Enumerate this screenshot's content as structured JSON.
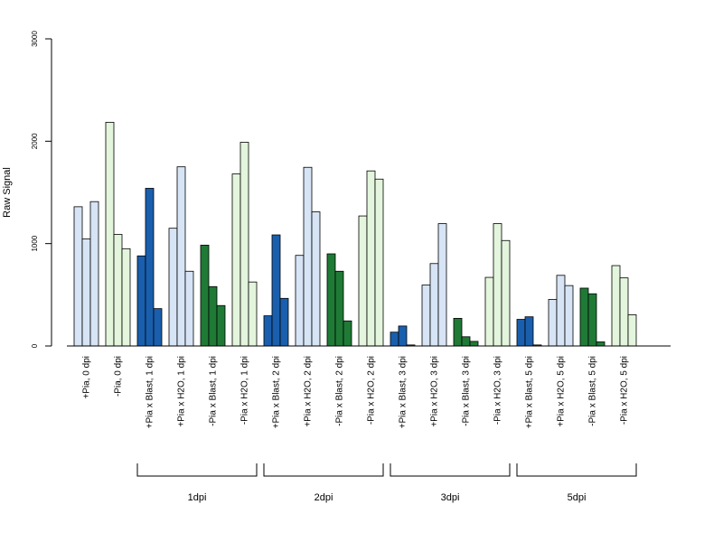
{
  "chart_data": {
    "type": "bar",
    "ylabel": "Raw Signal",
    "ylim": [
      0,
      3000
    ],
    "yticks": [
      0,
      1000,
      2000,
      3000
    ],
    "grid": false,
    "legend": "none",
    "colors": {
      "light_blue": "#d6e4f5",
      "light_green": "#e3f5dc",
      "dark_blue": "#1a5fad",
      "dark_green": "#1f7a36"
    },
    "categories": [
      {
        "label": "+Pia, 0 dpi",
        "color": "light_blue",
        "values": [
          1360,
          1045,
          1410
        ]
      },
      {
        "label": "-Pia, 0 dpi",
        "color": "light_green",
        "values": [
          2185,
          1090,
          950
        ]
      },
      {
        "label": "+Pia x Blast, 1 dpi",
        "color": "dark_blue",
        "values": [
          880,
          1540,
          365
        ]
      },
      {
        "label": "+Pia x H2O, 1 dpi",
        "color": "light_blue",
        "values": [
          1150,
          1750,
          730
        ]
      },
      {
        "label": "-Pia x Blast, 1 dpi",
        "color": "dark_green",
        "values": [
          985,
          580,
          395
        ]
      },
      {
        "label": "-Pia x H2O, 1 dpi",
        "color": "light_green",
        "values": [
          1680,
          1990,
          625
        ]
      },
      {
        "label": "+Pia x Blast, 2 dpi",
        "color": "dark_blue",
        "values": [
          295,
          1085,
          465
        ]
      },
      {
        "label": "+Pia x H2O, 2 dpi",
        "color": "light_blue",
        "values": [
          885,
          1745,
          1310
        ]
      },
      {
        "label": "-Pia x Blast, 2 dpi",
        "color": "dark_green",
        "values": [
          900,
          730,
          245
        ]
      },
      {
        "label": "-Pia x H2O, 2 dpi",
        "color": "light_green",
        "values": [
          1270,
          1710,
          1630
        ]
      },
      {
        "label": "+Pia x Blast, 3 dpi",
        "color": "dark_blue",
        "values": [
          135,
          195,
          10
        ]
      },
      {
        "label": "+Pia x H2O, 3 dpi",
        "color": "light_blue",
        "values": [
          595,
          805,
          1195
        ]
      },
      {
        "label": "-Pia x Blast, 3 dpi",
        "color": "dark_green",
        "values": [
          270,
          90,
          45
        ]
      },
      {
        "label": "-Pia x H2O, 3 dpi",
        "color": "light_green",
        "values": [
          670,
          1195,
          1030
        ]
      },
      {
        "label": "+Pia x Blast, 5 dpi",
        "color": "dark_blue",
        "values": [
          260,
          285,
          10
        ]
      },
      {
        "label": "+Pia x H2O, 5 dpi",
        "color": "light_blue",
        "values": [
          455,
          690,
          590
        ]
      },
      {
        "label": "-Pia x Blast, 5 dpi",
        "color": "dark_green",
        "values": [
          565,
          510,
          40
        ]
      },
      {
        "label": "-Pia x H2O, 5 dpi",
        "color": "light_green",
        "values": [
          785,
          665,
          305
        ]
      }
    ],
    "groups": [
      {
        "label": "1dpi",
        "from": 2,
        "to": 5
      },
      {
        "label": "2dpi",
        "from": 6,
        "to": 9
      },
      {
        "label": "3dpi",
        "from": 10,
        "to": 13
      },
      {
        "label": "5dpi",
        "from": 14,
        "to": 17
      }
    ]
  }
}
